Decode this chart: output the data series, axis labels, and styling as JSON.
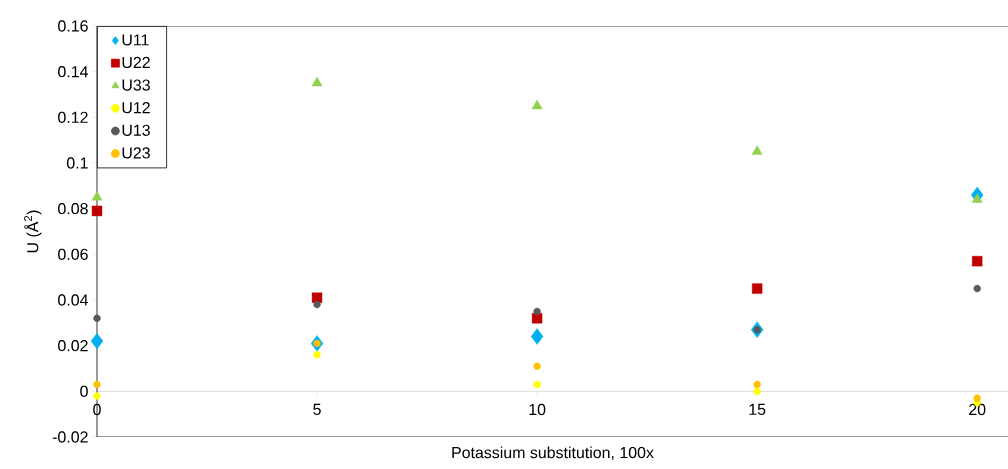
{
  "chart_data": {
    "type": "scatter",
    "xlabel": "Potassium substitution, 100x",
    "ylabel": "U (Å$^{2}$)",
    "x": [
      0,
      5,
      10,
      15,
      20
    ],
    "series": [
      {
        "name": "U11",
        "color": "#00b0f0",
        "marker": "diamond",
        "values": [
          0.022,
          0.021,
          0.024,
          0.027,
          0.086
        ]
      },
      {
        "name": "U22",
        "color": "#c00000",
        "marker": "square",
        "values": [
          0.079,
          0.041,
          0.032,
          0.045,
          0.057
        ]
      },
      {
        "name": "U33",
        "color": "#92d050",
        "marker": "triangle",
        "values": [
          0.085,
          0.135,
          0.125,
          0.105,
          0.084
        ]
      },
      {
        "name": "U12",
        "color": "#ffff00",
        "marker": "circle",
        "values": [
          -0.002,
          0.016,
          0.003,
          0.0,
          -0.005
        ]
      },
      {
        "name": "U13",
        "color": "#595959",
        "marker": "circle",
        "values": [
          0.032,
          0.038,
          0.035,
          0.027,
          0.045
        ]
      },
      {
        "name": "U23",
        "color": "#ffc000",
        "marker": "circle",
        "values": [
          0.003,
          0.021,
          0.011,
          0.003,
          -0.003
        ]
      }
    ],
    "xlim": [
      0,
      20.7
    ],
    "ylim": [
      -0.02,
      0.16
    ],
    "xticks": [
      0,
      5,
      10,
      15,
      20
    ],
    "yticks": [
      -0.02,
      0,
      0.02,
      0.04,
      0.06,
      0.08,
      0.1,
      0.12,
      0.14,
      0.16
    ],
    "legend": "top left",
    "grid": false
  }
}
